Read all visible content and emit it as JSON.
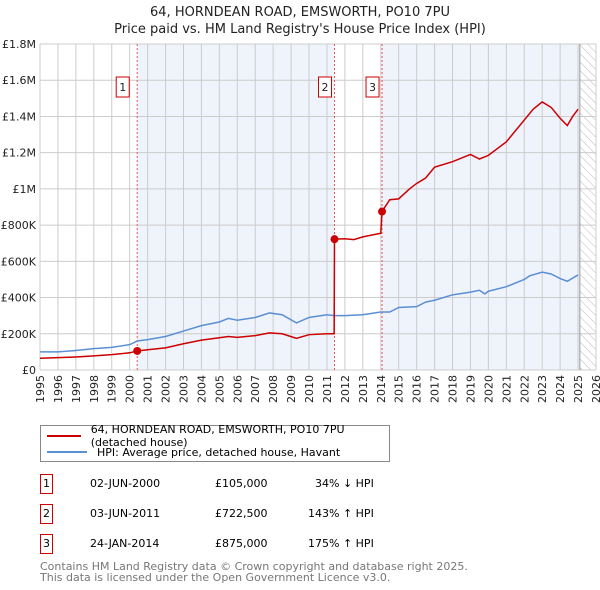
{
  "chart_data": {
    "type": "line",
    "title": "64, HORNDEAN ROAD, EMSWORTH, PO10 7PU",
    "subtitle": "Price paid vs. HM Land Registry's House Price Index (HPI)",
    "xlim": [
      1995,
      2026
    ],
    "ylim": [
      0,
      1800000
    ],
    "y_ticks": [
      {
        "v": 0,
        "label": "£0"
      },
      {
        "v": 200000,
        "label": "£200K"
      },
      {
        "v": 400000,
        "label": "£400K"
      },
      {
        "v": 600000,
        "label": "£600K"
      },
      {
        "v": 800000,
        "label": "£800K"
      },
      {
        "v": 1000000,
        "label": "£1M"
      },
      {
        "v": 1200000,
        "label": "£1.2M"
      },
      {
        "v": 1400000,
        "label": "£1.4M"
      },
      {
        "v": 1600000,
        "label": "£1.6M"
      },
      {
        "v": 1800000,
        "label": "£1.8M"
      }
    ],
    "x_ticks": [
      "1995",
      "1996",
      "1997",
      "1998",
      "1999",
      "2000",
      "2001",
      "2002",
      "2003",
      "2004",
      "2005",
      "2006",
      "2007",
      "2008",
      "2009",
      "2010",
      "2011",
      "2012",
      "2013",
      "2014",
      "2015",
      "2016",
      "2017",
      "2018",
      "2019",
      "2020",
      "2021",
      "2022",
      "2023",
      "2024",
      "2025",
      "2026"
    ],
    "grid": true,
    "series": [
      {
        "name": "64, HORNDEAN ROAD, EMSWORTH, PO10 7PU (detached house)",
        "color": "#cc0000",
        "x": [
          1995,
          1996,
          1997,
          1998,
          1999,
          2000,
          2000.42,
          2001,
          2002,
          2003,
          2004,
          2005,
          2005.5,
          2006,
          2007,
          2007.8,
          2008.5,
          2009.3,
          2010,
          2011,
          2011.4,
          2011.42,
          2012,
          2012.5,
          2013,
          2014,
          2014.07,
          2014.5,
          2015,
          2015.6,
          2016,
          2016.5,
          2017,
          2018,
          2019,
          2019.5,
          2020,
          2021,
          2022,
          2022.5,
          2023,
          2023.5,
          2024,
          2024.4,
          2024.7,
          2025
        ],
        "y": [
          65000,
          68000,
          72000,
          78000,
          85000,
          95000,
          105000,
          112000,
          122000,
          145000,
          165000,
          178000,
          185000,
          180000,
          190000,
          205000,
          200000,
          175000,
          195000,
          200000,
          200000,
          722500,
          725000,
          720000,
          735000,
          755000,
          875000,
          940000,
          945000,
          1000000,
          1030000,
          1060000,
          1120000,
          1150000,
          1190000,
          1165000,
          1185000,
          1260000,
          1380000,
          1440000,
          1480000,
          1450000,
          1390000,
          1350000,
          1400000,
          1440000
        ]
      },
      {
        "name": "HPI: Average price, detached house, Havant",
        "color": "#5b8fd4",
        "x": [
          1995,
          1996,
          1997,
          1998,
          1999,
          2000,
          2000.42,
          2001,
          2002,
          2003,
          2004,
          2005,
          2005.5,
          2006,
          2007,
          2007.8,
          2008.5,
          2009.3,
          2010,
          2011,
          2011.42,
          2012,
          2013,
          2014,
          2014.5,
          2015,
          2016,
          2016.5,
          2017,
          2018,
          2019,
          2019.5,
          2019.8,
          2020,
          2021,
          2022,
          2022.3,
          2023,
          2023.5,
          2024,
          2024.4,
          2025
        ],
        "y": [
          100000,
          100000,
          108000,
          118000,
          125000,
          140000,
          160000,
          168000,
          185000,
          215000,
          245000,
          265000,
          285000,
          275000,
          290000,
          315000,
          305000,
          260000,
          290000,
          305000,
          300000,
          300000,
          305000,
          320000,
          320000,
          345000,
          350000,
          375000,
          385000,
          415000,
          430000,
          440000,
          420000,
          435000,
          460000,
          500000,
          520000,
          540000,
          530000,
          505000,
          490000,
          525000
        ]
      }
    ],
    "sales": [
      {
        "n": "1",
        "x": 2000.42,
        "y": 105000,
        "date": "02-JUN-2000",
        "price": "£105,000",
        "hpi": "34% ↓ HPI"
      },
      {
        "n": "2",
        "x": 2011.42,
        "y": 722500,
        "date": "03-JUN-2011",
        "price": "£722,500",
        "hpi": "143% ↑ HPI"
      },
      {
        "n": "3",
        "x": 2014.07,
        "y": 875000,
        "date": "24-JAN-2014",
        "price": "£875,000",
        "hpi": "175% ↑ HPI"
      }
    ],
    "forecast_start": 2025.1,
    "legend_position": "bottom"
  },
  "footer": [
    "Contains HM Land Registry data © Crown copyright and database right 2025.",
    "This data is licensed under the Open Government Licence v3.0."
  ]
}
